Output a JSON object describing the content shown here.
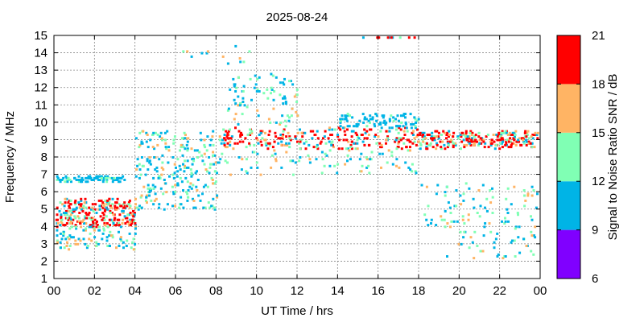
{
  "chart_data": {
    "type": "heatmap",
    "title": "2025-08-24",
    "xlabel": "UT Time / hrs",
    "ylabel": "Frequency / MHz",
    "xlim": [
      0,
      24
    ],
    "ylim": [
      1,
      15
    ],
    "x_tick_labels": [
      "00",
      "02",
      "04",
      "06",
      "08",
      "10",
      "12",
      "14",
      "16",
      "18",
      "20",
      "22",
      "00"
    ],
    "y_tick_labels": [
      "1",
      "2",
      "3",
      "4",
      "5",
      "6",
      "7",
      "8",
      "9",
      "10",
      "11",
      "12",
      "13",
      "14",
      "15"
    ],
    "grid": true,
    "colorbar": {
      "label": "Signal to Noise Ratio SNR / dB",
      "tick_labels": [
        "6",
        "9",
        "12",
        "15",
        "18",
        "21"
      ],
      "bins": [
        {
          "range": [
            6,
            9
          ],
          "color": "#8000ff"
        },
        {
          "range": [
            9,
            12
          ],
          "color": "#00b4e6"
        },
        {
          "range": [
            12,
            15
          ],
          "color": "#80ffb4"
        },
        {
          "range": [
            15,
            18
          ],
          "color": "#ffb464"
        },
        {
          "range": [
            18,
            21
          ],
          "color": "#ff0000"
        }
      ]
    },
    "regions": [
      {
        "t_range": [
          0,
          4
        ],
        "f_range": [
          4.0,
          5.6
        ],
        "snr": "18-21 dominant",
        "density": "high"
      },
      {
        "t_range": [
          0,
          4
        ],
        "f_range": [
          2.7,
          4.0
        ],
        "snr": "9-15",
        "density": "medium"
      },
      {
        "t_range": [
          0,
          3.5
        ],
        "f_range": [
          6.6,
          6.9
        ],
        "snr": "9-12",
        "density": "medium"
      },
      {
        "t_range": [
          4,
          8
        ],
        "f_range": [
          5.0,
          9.5
        ],
        "snr": "9-21 rising band",
        "density": "high"
      },
      {
        "t_range": [
          8,
          18
        ],
        "f_range": [
          8.5,
          9.7
        ],
        "snr": "15-21 dominant",
        "density": "high"
      },
      {
        "t_range": [
          8,
          18
        ],
        "f_range": [
          7.0,
          8.5
        ],
        "snr": "9-15",
        "density": "medium"
      },
      {
        "t_range": [
          8.5,
          12
        ],
        "f_range": [
          9.7,
          12.8
        ],
        "snr": "9-15",
        "density": "medium"
      },
      {
        "t_range": [
          14,
          18
        ],
        "f_range": [
          9.7,
          10.5
        ],
        "snr": "9-12",
        "density": "medium"
      },
      {
        "t_range": [
          18,
          24
        ],
        "f_range": [
          8.5,
          9.5
        ],
        "snr": "15-21",
        "density": "high"
      },
      {
        "t_range": [
          18,
          24
        ],
        "f_range": [
          4.0,
          6.5
        ],
        "snr": "9-21",
        "density": "medium"
      },
      {
        "t_range": [
          19,
          24
        ],
        "f_range": [
          2.2,
          4.0
        ],
        "snr": "9-15",
        "density": "low"
      },
      {
        "t_range": [
          5.5,
          10.5
        ],
        "f_range": [
          13.3,
          14.6
        ],
        "snr": "9-21",
        "density": "sparse"
      },
      {
        "t_range": [
          14.8,
          17.8
        ],
        "f_range": [
          14.9,
          15.0
        ],
        "snr": "18-21",
        "density": "sparse"
      }
    ]
  }
}
